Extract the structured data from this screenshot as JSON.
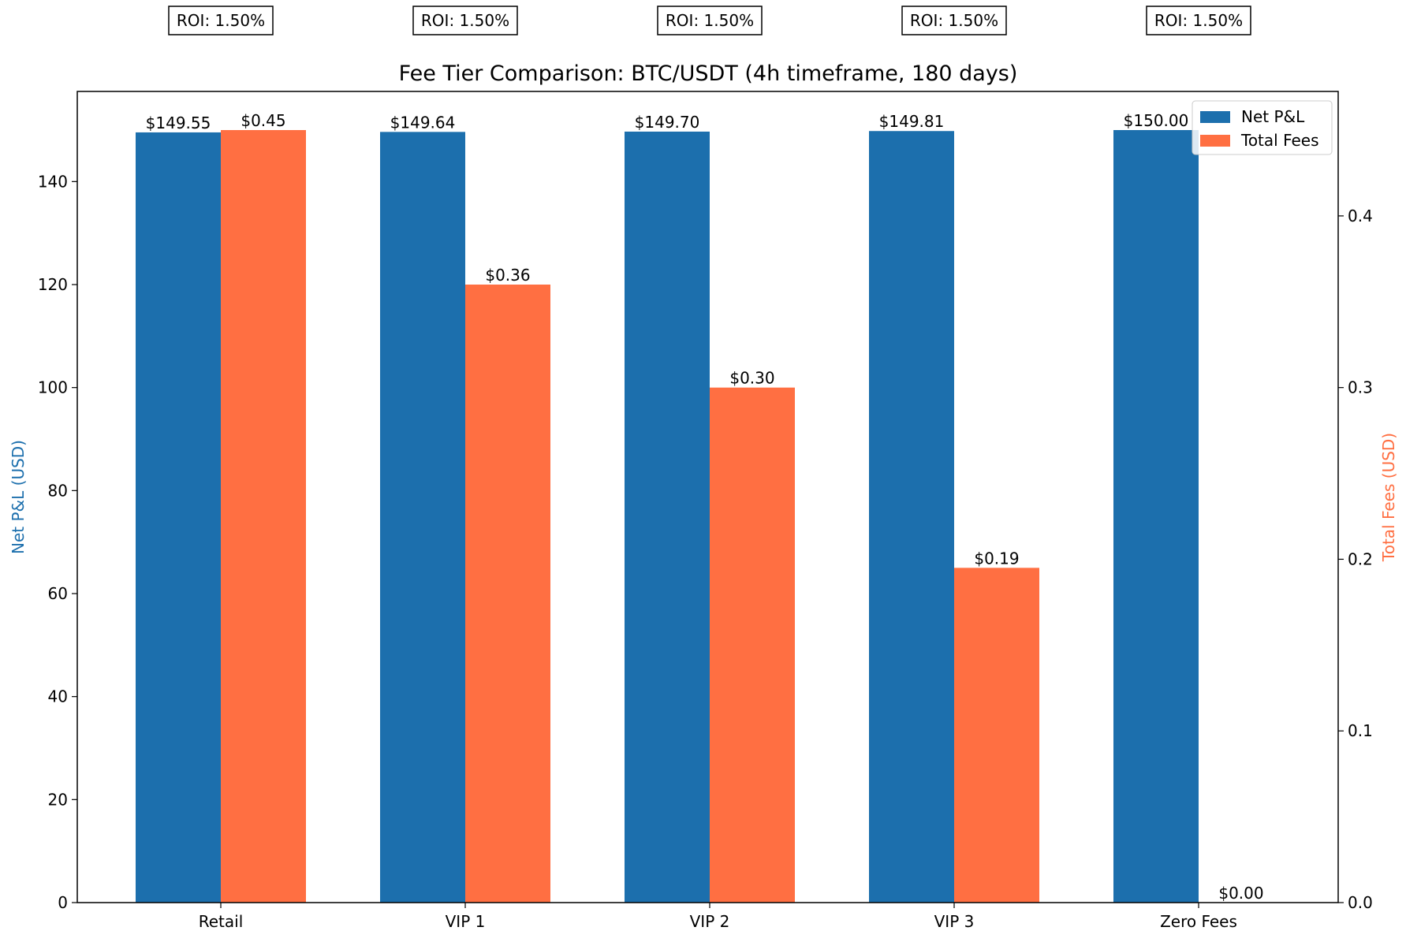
{
  "chart_data": {
    "type": "bar",
    "title": "Fee Tier Comparison: BTC/USDT (4h timeframe, 180 days)",
    "categories": [
      "Retail",
      "VIP 1",
      "VIP 2",
      "VIP 3",
      "Zero Fees"
    ],
    "series": [
      {
        "name": "Net P&L",
        "axis": "left",
        "color": "#1c6fad",
        "values": [
          149.55,
          149.64,
          149.7,
          149.81,
          150.0
        ],
        "labels": [
          "$149.55",
          "$149.64",
          "$149.70",
          "$149.81",
          "$150.00"
        ]
      },
      {
        "name": "Total Fees",
        "axis": "right",
        "color": "#ff6f42",
        "values": [
          0.45,
          0.36,
          0.3,
          0.195,
          0.0
        ],
        "labels": [
          "$0.45",
          "$0.36",
          "$0.30",
          "$0.19",
          "$0.00"
        ]
      }
    ],
    "annotations": [
      "ROI: 1.50%",
      "ROI: 1.50%",
      "ROI: 1.50%",
      "ROI: 1.50%",
      "ROI: 1.50%"
    ],
    "ylabel_left": "Net P&L (USD)",
    "ylabel_right": "Total Fees (USD)",
    "ylim_left": [
      0,
      157.5
    ],
    "ylim_right": [
      0,
      0.4725
    ],
    "yticks_left": [
      0,
      20,
      40,
      60,
      80,
      100,
      120,
      140
    ],
    "yticks_right": [
      0.0,
      0.1,
      0.2,
      0.3,
      0.4
    ],
    "ytick_labels_left": [
      "0",
      "20",
      "40",
      "60",
      "80",
      "100",
      "120",
      "140"
    ],
    "ytick_labels_right": [
      "0.0",
      "0.1",
      "0.2",
      "0.3",
      "0.4"
    ],
    "legend_position": "top-right",
    "grid": false
  }
}
